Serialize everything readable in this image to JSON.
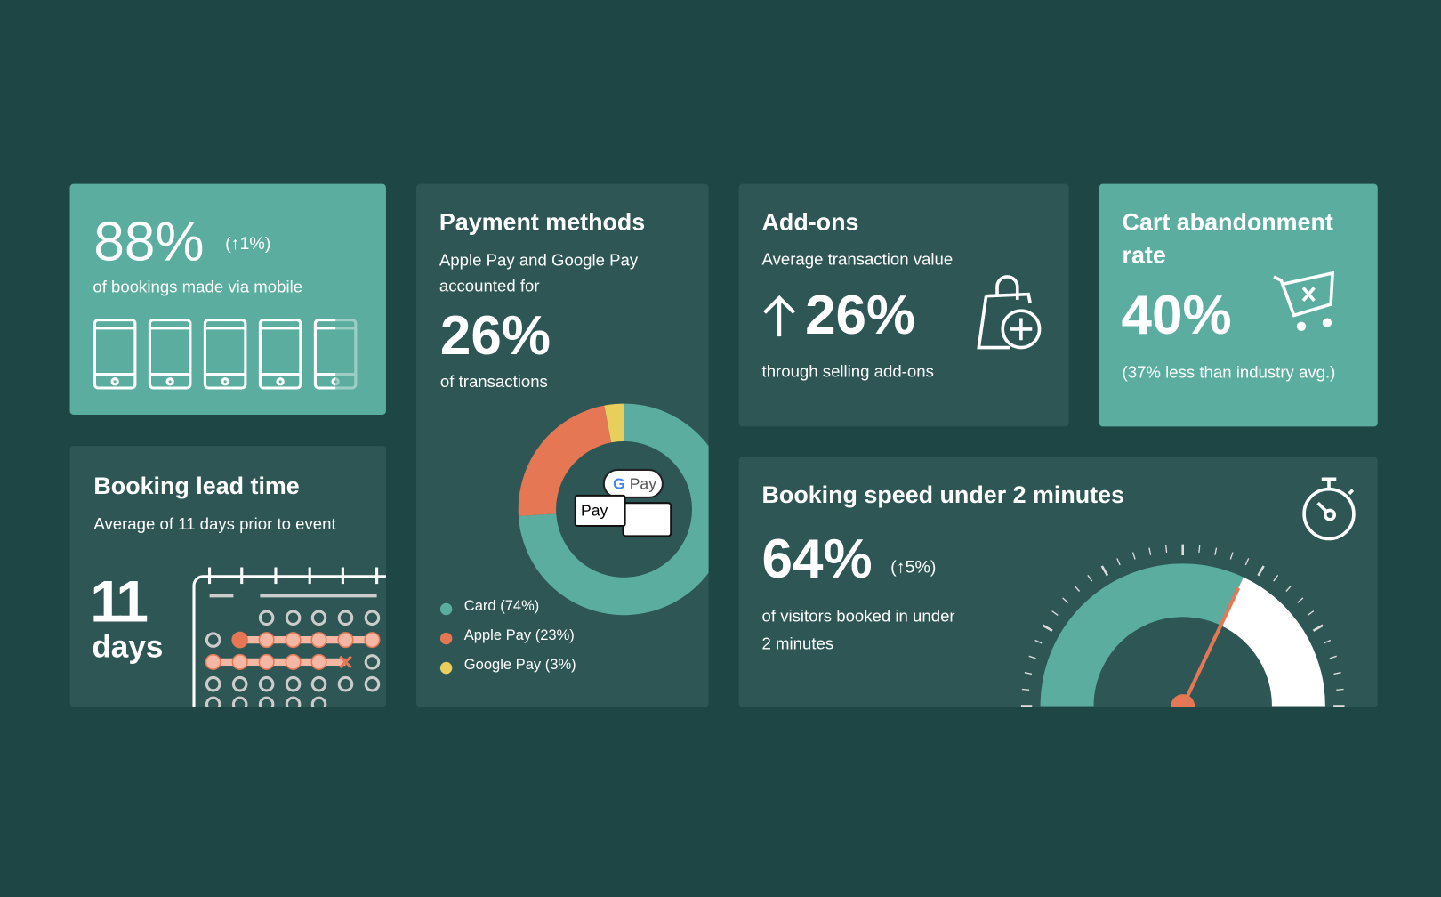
{
  "mobile": {
    "value": "88%",
    "change": "(↑1%)",
    "caption": "of bookings made via mobile",
    "phone_count": 4.5
  },
  "lead_time": {
    "title": "Booking lead time",
    "subtitle": "Average of 11 days prior to event",
    "number": "11",
    "unit": "days"
  },
  "payment": {
    "title": "Payment methods",
    "line1": "Apple Pay and Google Pay",
    "line2": "accounted for",
    "value": "26%",
    "caption": "of transactions",
    "gpay_label": "Pay",
    "applepay_label": "Pay"
  },
  "addons": {
    "title": "Add-ons",
    "subtitle": "Average transaction value",
    "value": "26%",
    "caption": "through selling add-ons"
  },
  "cart": {
    "title_line1": "Cart abandonment",
    "title_line2": "rate",
    "value": "40%",
    "caption": "(37% less than industry avg.)"
  },
  "speed": {
    "title": "Booking speed under 2 minutes",
    "value": "64%",
    "change": "(↑5%)",
    "caption_line1": "of visitors booked in under",
    "caption_line2": "2 minutes"
  },
  "colors": {
    "background": "#1d4645",
    "card": "#2d5655",
    "teal": "#5bada0",
    "orange": "#e57755",
    "yellow": "#e8cf5b",
    "pink": "#f4b7a3"
  },
  "chart_data": [
    {
      "type": "pie",
      "variant": "donut",
      "categories": [
        "Card",
        "Apple Pay",
        "Google Pay"
      ],
      "values": [
        74,
        23,
        3
      ],
      "legend": [
        "Card (74%)",
        "Apple Pay (23%)",
        "Google Pay (3%)"
      ],
      "colors": [
        "#5bada0",
        "#e57755",
        "#e8cf5b"
      ],
      "legend_position": "bottom-left"
    },
    {
      "type": "gauge",
      "value": 64,
      "range": [
        0,
        100
      ]
    }
  ]
}
